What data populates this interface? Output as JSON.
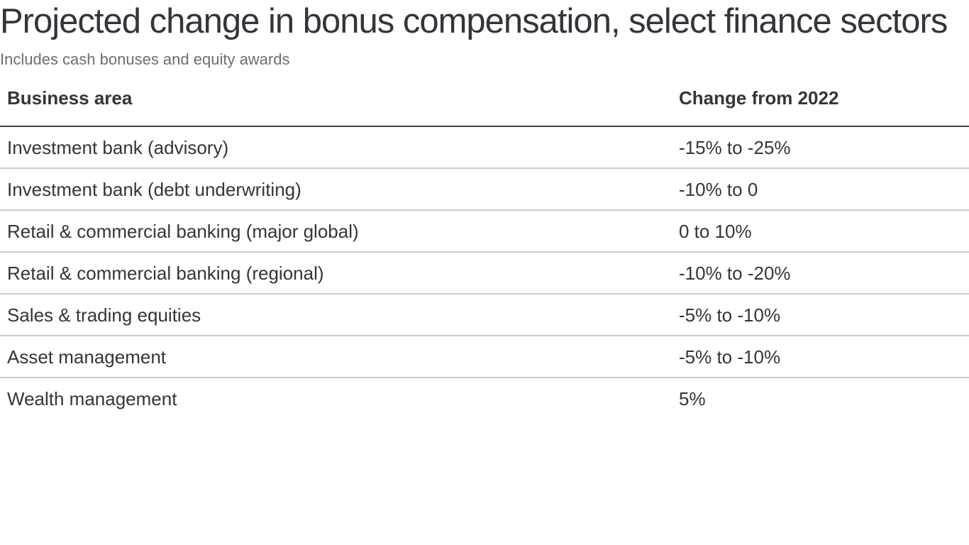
{
  "chart_data": {
    "type": "table",
    "title": "Projected change in bonus compensation, select finance sectors",
    "subtitle": "Includes cash bonuses and equity awards",
    "columns": [
      "Business area",
      "Change from 2022"
    ],
    "rows": [
      [
        "Investment bank (advisory)",
        "-15% to -25%"
      ],
      [
        "Investment bank (debt underwriting)",
        "-10% to 0"
      ],
      [
        "Retail & commercial banking (major global)",
        "0 to 10%"
      ],
      [
        "Retail & commercial banking (regional)",
        "-10% to -20%"
      ],
      [
        "Sales & trading equities",
        "-5% to -10%"
      ],
      [
        "Asset management",
        "-5% to -10%"
      ],
      [
        "Wealth management",
        "5%"
      ]
    ],
    "layout": {
      "legend": "none",
      "grid": "horizontal-row-rules"
    }
  },
  "colors": {
    "background": "#ffffff",
    "title_text": "#34343a",
    "subtitle_text": "#6e6e72",
    "body_text": "#34343a",
    "header_rule": "#404045",
    "row_rule": "#cbcbcb"
  }
}
